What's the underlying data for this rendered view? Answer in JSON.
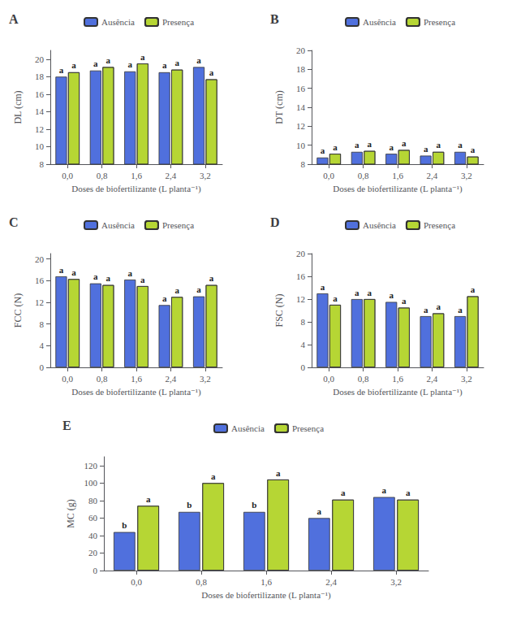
{
  "chart_data": [
    {
      "type": "bar",
      "title": "A",
      "categories": [
        "0,0",
        "0,8",
        "1,6",
        "2,4",
        "3,2"
      ],
      "xlabel": "Doses de biofertilizante (L planta⁻¹)",
      "ylabel": "DL (cm)",
      "ylim": [
        8,
        21
      ],
      "yticks": [
        8,
        10,
        12,
        14,
        16,
        18,
        20
      ],
      "grid": false,
      "legend": "top",
      "series": [
        {
          "name": "Ausência",
          "values": [
            18.0,
            18.7,
            18.6,
            18.5,
            19.1
          ],
          "annotations": [
            "a",
            "a",
            "a",
            "a",
            "a"
          ]
        },
        {
          "name": "Presença",
          "values": [
            18.5,
            19.1,
            19.5,
            18.8,
            17.7
          ],
          "annotations": [
            "a",
            "a",
            "a",
            "a",
            "a"
          ]
        }
      ]
    },
    {
      "type": "bar",
      "title": "B",
      "categories": [
        "0,0",
        "0,8",
        "1,6",
        "2,4",
        "3,2"
      ],
      "xlabel": "Doses de biofertilizante (L planta⁻¹)",
      "ylabel": "DT (cm)",
      "ylim": [
        8,
        20
      ],
      "yticks": [
        8,
        10,
        12,
        14,
        16,
        18,
        20
      ],
      "grid": false,
      "legend": "top",
      "series": [
        {
          "name": "Ausência",
          "values": [
            8.7,
            9.3,
            9.1,
            8.9,
            9.3
          ],
          "annotations": [
            "a",
            "a",
            "a",
            "a",
            "a"
          ]
        },
        {
          "name": "Presença",
          "values": [
            9.1,
            9.4,
            9.5,
            9.3,
            8.8
          ],
          "annotations": [
            "a",
            "a",
            "a",
            "a",
            "a"
          ]
        }
      ]
    },
    {
      "type": "bar",
      "title": "C",
      "categories": [
        "0,0",
        "0,8",
        "1,6",
        "2,4",
        "3,2"
      ],
      "xlabel": "Doses de biofertilizante (L planta⁻¹)",
      "ylabel": "FCC (N)",
      "ylim": [
        0,
        21
      ],
      "yticks": [
        0,
        4,
        8,
        12,
        16,
        20
      ],
      "grid": false,
      "legend": "top",
      "series": [
        {
          "name": "Ausência",
          "values": [
            16.8,
            15.5,
            16.2,
            11.5,
            13.1
          ],
          "annotations": [
            "a",
            "a",
            "a",
            "a",
            "a"
          ]
        },
        {
          "name": "Presença",
          "values": [
            16.3,
            15.2,
            15.0,
            13.0,
            15.2
          ],
          "annotations": [
            "a",
            "a",
            "a",
            "a",
            "a"
          ]
        }
      ]
    },
    {
      "type": "bar",
      "title": "D",
      "categories": [
        "0,0",
        "0,8",
        "1,6",
        "2,4",
        "3,2"
      ],
      "xlabel": "Doses de biofertilizante (L planta⁻¹)",
      "ylabel": "FSC (N)",
      "ylim": [
        0,
        20
      ],
      "yticks": [
        0,
        4,
        8,
        12,
        16,
        20
      ],
      "grid": false,
      "legend": "top",
      "series": [
        {
          "name": "Ausência",
          "values": [
            13.0,
            12.0,
            11.5,
            9.0,
            9.0
          ],
          "annotations": [
            "a",
            "a",
            "a",
            "a",
            "a"
          ]
        },
        {
          "name": "Presença",
          "values": [
            11.0,
            12.0,
            10.5,
            9.5,
            12.5
          ],
          "annotations": [
            "a",
            "a",
            "a",
            "a",
            "a"
          ]
        }
      ]
    },
    {
      "type": "bar",
      "title": "E",
      "categories": [
        "0,0",
        "0,8",
        "1,6",
        "2,4",
        "3,2"
      ],
      "xlabel": "Doses de biofertilizante (L planta⁻¹)",
      "ylabel": "MC (g)",
      "ylim": [
        0,
        130
      ],
      "yticks": [
        0,
        20,
        40,
        60,
        80,
        100,
        120
      ],
      "grid": false,
      "legend": "top",
      "series": [
        {
          "name": "Ausência",
          "values": [
            44.0,
            67.0,
            67.0,
            60.0,
            84.0
          ],
          "annotations": [
            "b",
            "b",
            "b",
            "a",
            "a"
          ]
        },
        {
          "name": "Presença",
          "values": [
            74.0,
            100.0,
            104.0,
            81.0,
            81.0
          ],
          "annotations": [
            "a",
            "a",
            "a",
            "a",
            "a"
          ]
        }
      ]
    }
  ]
}
